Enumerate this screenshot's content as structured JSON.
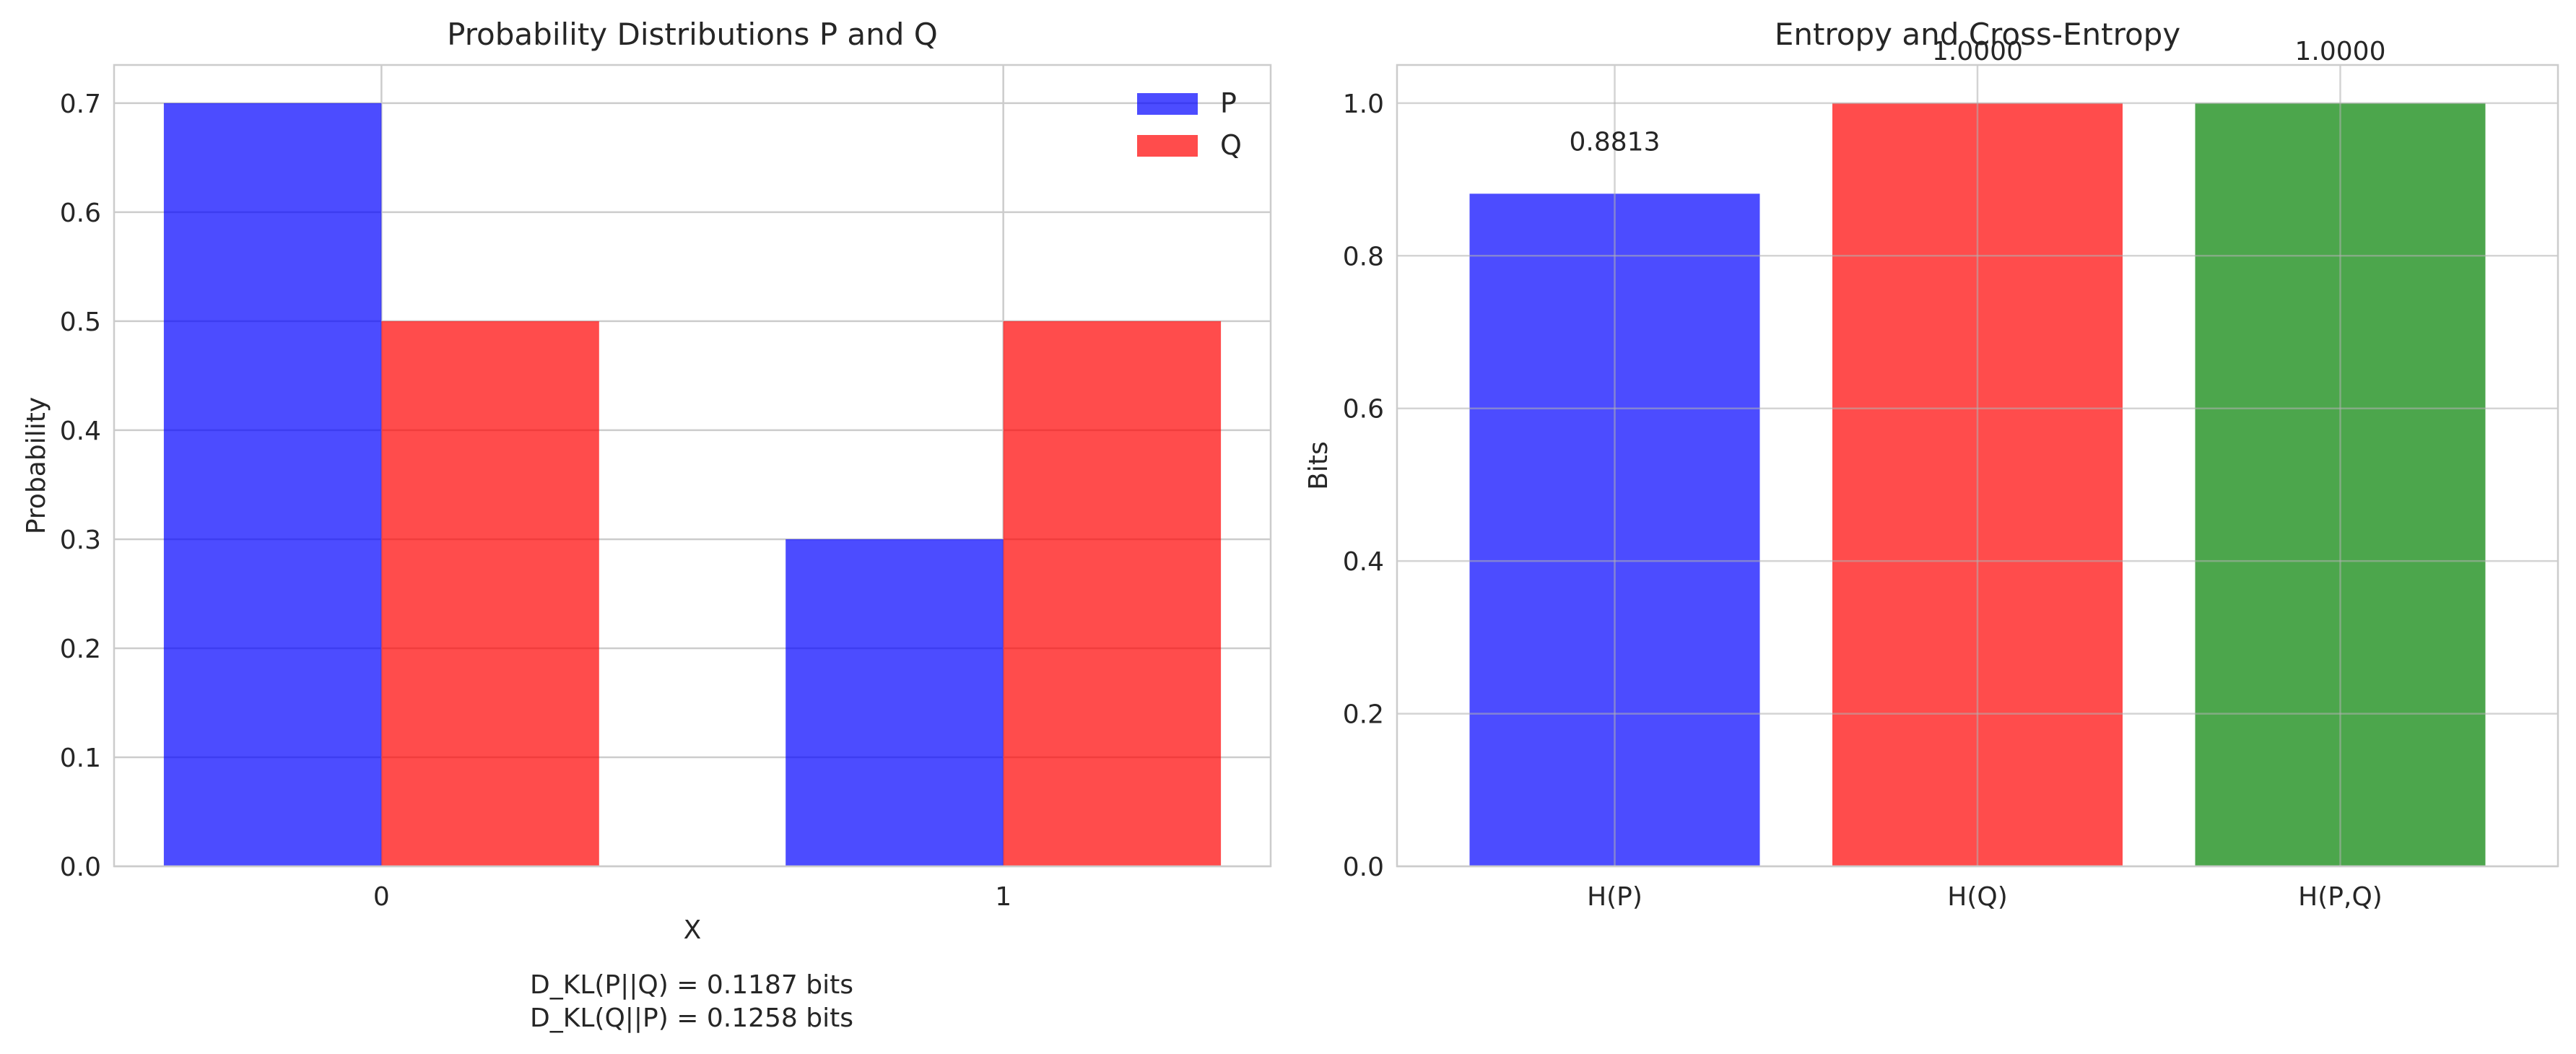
{
  "chart_data": [
    {
      "type": "bar",
      "title": "Probability Distributions P and Q",
      "xlabel": "X",
      "ylabel": "Probability",
      "categories": [
        "0",
        "1"
      ],
      "series": [
        {
          "name": "P",
          "values": [
            0.7,
            0.3
          ],
          "color": "#0000ff"
        },
        {
          "name": "Q",
          "values": [
            0.5,
            0.5
          ],
          "color": "#ff0000"
        }
      ],
      "ylim": [
        0,
        0.735
      ],
      "yticks": [
        "0.0",
        "0.1",
        "0.2",
        "0.3",
        "0.4",
        "0.5",
        "0.6",
        "0.7"
      ],
      "grid": true,
      "legend": "top-right",
      "annotations": [
        "D_KL(P||Q) = 0.1187 bits",
        "D_KL(Q||P) = 0.1258 bits"
      ]
    },
    {
      "type": "bar",
      "title": "Entropy and Cross-Entropy",
      "xlabel": "",
      "ylabel": "Bits",
      "categories": [
        "H(P)",
        "H(Q)",
        "H(P,Q)"
      ],
      "values": [
        0.8813,
        1.0,
        1.0
      ],
      "value_labels": [
        "0.8813",
        "1.0000",
        "1.0000"
      ],
      "colors": [
        "#0000ff",
        "#ff0000",
        "#008000"
      ],
      "ylim": [
        0,
        1.05
      ],
      "yticks": [
        "0.0",
        "0.2",
        "0.4",
        "0.6",
        "0.8",
        "1.0"
      ],
      "grid": true
    }
  ]
}
